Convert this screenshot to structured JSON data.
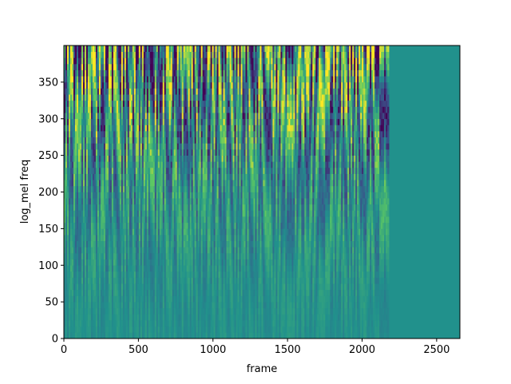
{
  "chart_data": {
    "type": "heatmap",
    "title": "",
    "xlabel": "frame",
    "ylabel": "log_mel freq",
    "xlim": [
      0,
      2656
    ],
    "ylim": [
      0,
      400
    ],
    "xticks": [
      0,
      500,
      1000,
      1500,
      2000,
      2500
    ],
    "yticks": [
      0,
      50,
      100,
      150,
      200,
      250,
      300,
      350
    ],
    "colormap": "viridis",
    "signal_end_frame": 2180,
    "padding_color": "#21918c",
    "grid": false,
    "legend": "none"
  },
  "colors": {
    "viridis": [
      "#440154",
      "#3b528b",
      "#21918c",
      "#5ec962",
      "#fde725"
    ],
    "axis": "#000000",
    "background": "#ffffff"
  }
}
